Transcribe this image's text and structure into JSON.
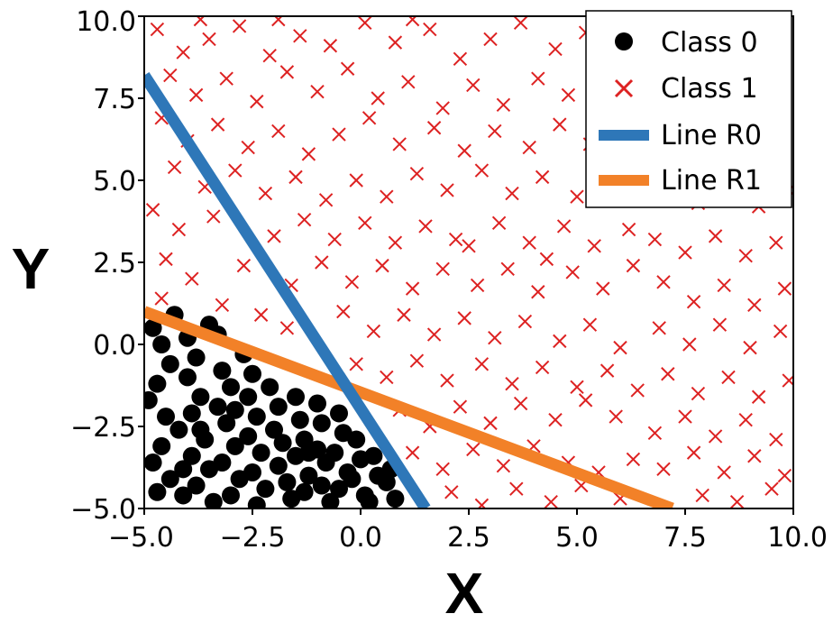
{
  "chart_data": {
    "type": "scatter",
    "xlabel": "X",
    "ylabel": "Y",
    "xlim": [
      -5.0,
      10.0
    ],
    "ylim": [
      -5.0,
      10.0
    ],
    "x_ticks": [
      "−5.0",
      "−2.5",
      "0.0",
      "2.5",
      "5.0",
      "7.5",
      "10.0"
    ],
    "y_ticks": [
      "−5.0",
      "−2.5",
      "0.0",
      "2.5",
      "5.0",
      "7.5",
      "10.0"
    ],
    "x_tick_values": [
      -5.0,
      -2.5,
      0.0,
      2.5,
      5.0,
      7.5,
      10.0
    ],
    "y_tick_values": [
      -5.0,
      -2.5,
      0.0,
      2.5,
      5.0,
      7.5,
      10.0
    ],
    "grid": false,
    "legend_position": "top-right",
    "colors": {
      "class0": "#000000",
      "class1": "#dd2222",
      "line_r0": "#2e77b8",
      "line_r1": "#f28128"
    },
    "series": [
      {
        "name": "Class 0",
        "marker": "circle",
        "points": [
          [
            -4.8,
            0.5
          ],
          [
            -4.6,
            0.0
          ],
          [
            -4.4,
            -0.6
          ],
          [
            -4.7,
            -1.2
          ],
          [
            -4.9,
            -1.7
          ],
          [
            -4.5,
            -2.2
          ],
          [
            -4.2,
            -2.6
          ],
          [
            -4.6,
            -3.1
          ],
          [
            -4.8,
            -3.6
          ],
          [
            -4.4,
            -4.1
          ],
          [
            -4.1,
            -4.6
          ],
          [
            -4.7,
            -4.5
          ],
          [
            -4.0,
            0.2
          ],
          [
            -3.8,
            -0.4
          ],
          [
            -4.0,
            -1.0
          ],
          [
            -3.7,
            -1.6
          ],
          [
            -3.9,
            -2.1
          ],
          [
            -3.6,
            -2.9
          ],
          [
            -3.9,
            -3.4
          ],
          [
            -3.5,
            -3.8
          ],
          [
            -3.8,
            -4.3
          ],
          [
            -3.4,
            -4.8
          ],
          [
            -3.3,
            0.3
          ],
          [
            -3.2,
            -0.8
          ],
          [
            -3.0,
            -1.3
          ],
          [
            -3.3,
            -1.9
          ],
          [
            -3.1,
            -2.4
          ],
          [
            -2.9,
            -3.1
          ],
          [
            -3.2,
            -3.6
          ],
          [
            -2.8,
            -4.1
          ],
          [
            -3.0,
            -4.6
          ],
          [
            -2.7,
            -0.3
          ],
          [
            -2.5,
            -0.9
          ],
          [
            -2.6,
            -1.6
          ],
          [
            -2.4,
            -2.2
          ],
          [
            -2.6,
            -2.8
          ],
          [
            -2.3,
            -3.3
          ],
          [
            -2.5,
            -3.9
          ],
          [
            -2.2,
            -4.4
          ],
          [
            -2.4,
            -4.9
          ],
          [
            -2.1,
            -1.3
          ],
          [
            -1.9,
            -1.9
          ],
          [
            -2.0,
            -2.6
          ],
          [
            -1.8,
            -3.0
          ],
          [
            -1.9,
            -3.7
          ],
          [
            -1.7,
            -4.2
          ],
          [
            -1.6,
            -4.7
          ],
          [
            -1.5,
            -1.6
          ],
          [
            -1.4,
            -2.3
          ],
          [
            -1.3,
            -2.9
          ],
          [
            -1.5,
            -3.4
          ],
          [
            -1.2,
            -4.0
          ],
          [
            -1.3,
            -4.5
          ],
          [
            -1.0,
            -1.8
          ],
          [
            -0.9,
            -2.4
          ],
          [
            -1.0,
            -3.2
          ],
          [
            -0.8,
            -3.6
          ],
          [
            -0.9,
            -4.3
          ],
          [
            -0.7,
            -4.8
          ],
          [
            -0.5,
            -2.1
          ],
          [
            -0.4,
            -2.7
          ],
          [
            -0.6,
            -3.3
          ],
          [
            -0.3,
            -3.9
          ],
          [
            -0.5,
            -4.4
          ],
          [
            -0.1,
            -2.9
          ],
          [
            0.0,
            -3.5
          ],
          [
            -0.2,
            -4.1
          ],
          [
            0.1,
            -4.6
          ],
          [
            0.3,
            -3.4
          ],
          [
            0.4,
            -4.0
          ],
          [
            0.2,
            -4.8
          ],
          [
            0.6,
            -4.2
          ],
          [
            0.8,
            -4.7
          ],
          [
            -4.3,
            0.9
          ],
          [
            -3.5,
            0.6
          ],
          [
            -4.1,
            -3.8
          ],
          [
            -2.9,
            -2.0
          ],
          [
            -1.2,
            -3.3
          ],
          [
            -3.7,
            -2.6
          ],
          [
            0.7,
            -3.8
          ]
        ]
      },
      {
        "name": "Class 1",
        "marker": "x",
        "points": [
          [
            -4.7,
            9.6
          ],
          [
            -4.1,
            8.9
          ],
          [
            -3.5,
            9.3
          ],
          [
            -2.8,
            9.7
          ],
          [
            -2.1,
            8.8
          ],
          [
            -1.4,
            9.4
          ],
          [
            -0.7,
            9.1
          ],
          [
            0.1,
            9.8
          ],
          [
            0.8,
            9.2
          ],
          [
            1.6,
            9.6
          ],
          [
            2.3,
            8.7
          ],
          [
            3.0,
            9.3
          ],
          [
            3.7,
            9.8
          ],
          [
            4.5,
            9.0
          ],
          [
            5.2,
            9.5
          ],
          [
            6.0,
            9.1
          ],
          [
            -4.4,
            8.2
          ],
          [
            -3.8,
            7.6
          ],
          [
            -3.1,
            8.1
          ],
          [
            -2.4,
            7.4
          ],
          [
            -1.7,
            8.3
          ],
          [
            -1.0,
            7.7
          ],
          [
            -0.3,
            8.4
          ],
          [
            0.4,
            7.5
          ],
          [
            1.1,
            8.0
          ],
          [
            1.9,
            7.2
          ],
          [
            2.6,
            7.9
          ],
          [
            3.3,
            7.3
          ],
          [
            4.1,
            8.1
          ],
          [
            4.8,
            7.6
          ],
          [
            5.6,
            8.2
          ],
          [
            6.3,
            7.4
          ],
          [
            -4.6,
            6.9
          ],
          [
            -4.0,
            6.2
          ],
          [
            -3.3,
            6.7
          ],
          [
            -2.6,
            6.0
          ],
          [
            -1.9,
            6.5
          ],
          [
            -1.2,
            5.8
          ],
          [
            -0.5,
            6.4
          ],
          [
            0.2,
            6.9
          ],
          [
            0.9,
            6.1
          ],
          [
            1.7,
            6.6
          ],
          [
            2.4,
            5.9
          ],
          [
            3.1,
            6.5
          ],
          [
            3.9,
            6.0
          ],
          [
            4.6,
            6.7
          ],
          [
            5.3,
            6.1
          ],
          [
            6.1,
            6.8
          ],
          [
            -4.3,
            5.4
          ],
          [
            -3.6,
            4.8
          ],
          [
            -2.9,
            5.3
          ],
          [
            -2.2,
            4.6
          ],
          [
            -1.5,
            5.1
          ],
          [
            -0.8,
            4.4
          ],
          [
            -0.1,
            5.0
          ],
          [
            0.6,
            4.5
          ],
          [
            1.3,
            5.2
          ],
          [
            2.0,
            4.7
          ],
          [
            2.8,
            5.3
          ],
          [
            3.5,
            4.6
          ],
          [
            4.2,
            5.1
          ],
          [
            5.0,
            4.5
          ],
          [
            5.7,
            5.2
          ],
          [
            6.4,
            4.7
          ],
          [
            -4.8,
            4.1
          ],
          [
            -4.2,
            3.5
          ],
          [
            -3.4,
            3.9
          ],
          [
            -2.0,
            3.3
          ],
          [
            -1.3,
            3.8
          ],
          [
            -0.6,
            3.2
          ],
          [
            0.1,
            3.7
          ],
          [
            0.8,
            3.1
          ],
          [
            1.5,
            3.6
          ],
          [
            2.2,
            3.2
          ],
          [
            2.5,
            3.0
          ],
          [
            3.2,
            3.7
          ],
          [
            3.9,
            3.1
          ],
          [
            4.3,
            2.6
          ],
          [
            4.7,
            3.6
          ],
          [
            5.4,
            3.0
          ],
          [
            6.2,
            3.5
          ],
          [
            -4.5,
            2.6
          ],
          [
            -3.9,
            2.0
          ],
          [
            -2.7,
            2.4
          ],
          [
            -1.6,
            1.8
          ],
          [
            -0.9,
            2.5
          ],
          [
            -0.2,
            1.9
          ],
          [
            0.5,
            2.4
          ],
          [
            1.2,
            1.7
          ],
          [
            1.9,
            2.3
          ],
          [
            2.7,
            1.8
          ],
          [
            3.4,
            2.3
          ],
          [
            4.1,
            1.6
          ],
          [
            4.9,
            2.2
          ],
          [
            5.6,
            1.7
          ],
          [
            6.3,
            2.4
          ],
          [
            -4.6,
            1.4
          ],
          [
            -3.2,
            1.2
          ],
          [
            -2.3,
            0.9
          ],
          [
            -1.7,
            0.5
          ],
          [
            -0.4,
            1.0
          ],
          [
            0.3,
            0.4
          ],
          [
            1.0,
            0.9
          ],
          [
            1.7,
            0.3
          ],
          [
            2.4,
            0.8
          ],
          [
            3.1,
            0.2
          ],
          [
            3.8,
            0.7
          ],
          [
            4.6,
            0.1
          ],
          [
            5.3,
            0.6
          ],
          [
            6.0,
            -0.1
          ],
          [
            -0.1,
            -0.6
          ],
          [
            0.6,
            -1.0
          ],
          [
            1.3,
            -0.5
          ],
          [
            2.0,
            -1.1
          ],
          [
            2.8,
            -0.6
          ],
          [
            3.5,
            -1.2
          ],
          [
            4.2,
            -0.7
          ],
          [
            5.0,
            -1.3
          ],
          [
            5.7,
            -0.8
          ],
          [
            6.4,
            -1.4
          ],
          [
            0.9,
            -2.0
          ],
          [
            1.6,
            -2.5
          ],
          [
            2.3,
            -1.9
          ],
          [
            3.0,
            -2.4
          ],
          [
            3.7,
            -1.8
          ],
          [
            4.5,
            -2.3
          ],
          [
            5.2,
            -1.7
          ],
          [
            5.9,
            -2.2
          ],
          [
            1.2,
            -3.3
          ],
          [
            1.9,
            -3.8
          ],
          [
            2.6,
            -3.2
          ],
          [
            3.3,
            -3.7
          ],
          [
            4.0,
            -3.1
          ],
          [
            4.8,
            -3.6
          ],
          [
            5.5,
            -3.9
          ],
          [
            6.3,
            -3.5
          ],
          [
            2.1,
            -4.5
          ],
          [
            2.8,
            -4.9
          ],
          [
            3.6,
            -4.4
          ],
          [
            4.4,
            -4.8
          ],
          [
            5.1,
            -4.3
          ],
          [
            6.0,
            -4.7
          ],
          [
            6.9,
            9.7
          ],
          [
            7.6,
            9.2
          ],
          [
            8.3,
            8.8
          ],
          [
            9.0,
            9.4
          ],
          [
            9.6,
            8.9
          ],
          [
            7.2,
            7.8
          ],
          [
            7.9,
            7.2
          ],
          [
            8.6,
            7.7
          ],
          [
            9.3,
            7.1
          ],
          [
            9.8,
            7.6
          ],
          [
            6.9,
            6.3
          ],
          [
            7.6,
            5.8
          ],
          [
            8.3,
            6.4
          ],
          [
            9.0,
            5.7
          ],
          [
            9.7,
            6.2
          ],
          [
            7.1,
            4.9
          ],
          [
            7.8,
            4.3
          ],
          [
            8.5,
            4.8
          ],
          [
            9.2,
            4.2
          ],
          [
            9.9,
            4.7
          ],
          [
            6.8,
            3.2
          ],
          [
            7.5,
            2.8
          ],
          [
            8.2,
            3.3
          ],
          [
            8.9,
            2.7
          ],
          [
            9.6,
            3.1
          ],
          [
            7.0,
            1.9
          ],
          [
            7.7,
            1.3
          ],
          [
            8.4,
            1.8
          ],
          [
            9.1,
            1.2
          ],
          [
            9.8,
            1.7
          ],
          [
            6.9,
            0.5
          ],
          [
            7.6,
            0.0
          ],
          [
            8.3,
            0.6
          ],
          [
            9.0,
            -0.1
          ],
          [
            9.7,
            0.4
          ],
          [
            7.1,
            -0.9
          ],
          [
            7.8,
            -1.5
          ],
          [
            8.5,
            -1.0
          ],
          [
            9.2,
            -1.6
          ],
          [
            9.9,
            -1.1
          ],
          [
            6.8,
            -2.7
          ],
          [
            7.5,
            -2.2
          ],
          [
            8.2,
            -2.8
          ],
          [
            8.9,
            -2.3
          ],
          [
            9.6,
            -2.9
          ],
          [
            7.0,
            -3.8
          ],
          [
            7.7,
            -3.3
          ],
          [
            8.4,
            -3.9
          ],
          [
            9.1,
            -3.4
          ],
          [
            9.8,
            -4.0
          ],
          [
            7.9,
            -4.6
          ],
          [
            8.7,
            -4.8
          ],
          [
            9.5,
            -4.4
          ],
          [
            -3.7,
            9.9
          ],
          [
            -1.9,
            9.9
          ],
          [
            1.2,
            9.9
          ]
        ]
      },
      {
        "name": "Line R0",
        "type": "line",
        "x": [
          -5.0,
          1.5
        ],
        "y": [
          8.2,
          -5.0
        ]
      },
      {
        "name": "Line R1",
        "type": "line",
        "x": [
          -5.0,
          7.2
        ],
        "y": [
          1.0,
          -5.0
        ]
      }
    ]
  }
}
